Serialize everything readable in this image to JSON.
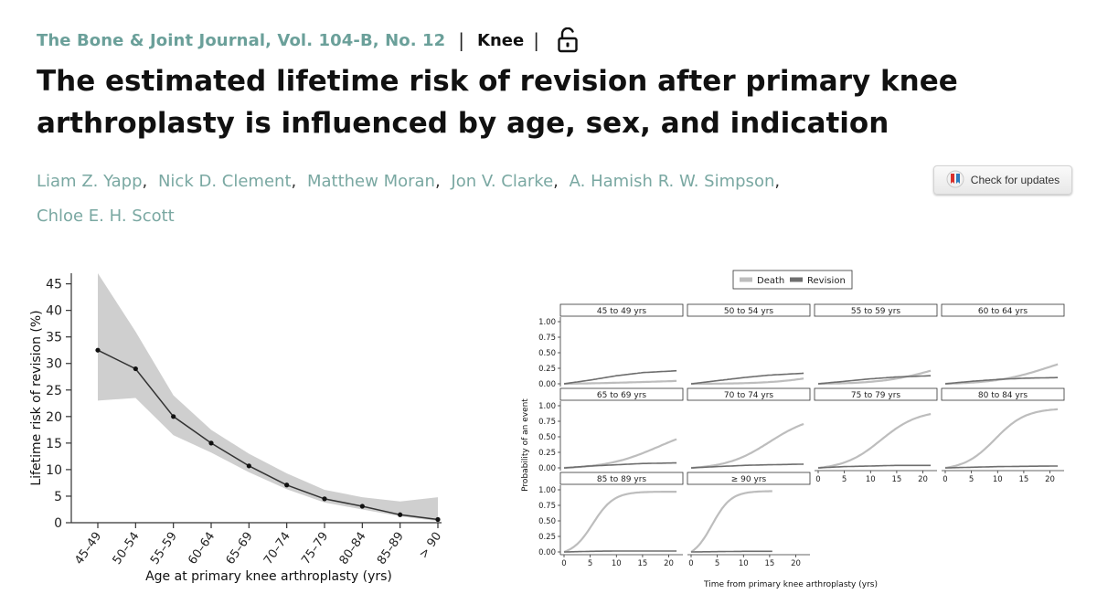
{
  "header": {
    "journal": "The Bone & Joint Journal, Vol. 104-B, No. 12",
    "separator": "|",
    "section": "Knee",
    "access_icon": "open-lock-icon"
  },
  "article": {
    "title": "The estimated lifetime risk of revision after primary knee arthroplasty is influenced by age, sex, and indication",
    "authors": [
      "Liam Z. Yapp",
      "Nick D. Clement",
      "Matthew Moran",
      "Jon V. Clarke",
      "A. Hamish R. W. Simpson",
      "Chloe E. H. Scott"
    ]
  },
  "check_updates": {
    "label": "Check for updates",
    "icon": "crossmark-icon"
  },
  "chart_data": [
    {
      "type": "line",
      "title": "",
      "xlabel": "Age at primary knee arthroplasty (yrs)",
      "ylabel": "Lifetime risk of revision (%)",
      "categories": [
        "45–49",
        "50–54",
        "55–59",
        "60–64",
        "65–69",
        "70–74",
        "75–79",
        "80–84",
        "85–89",
        "> 90"
      ],
      "values": [
        32.5,
        29,
        20,
        15,
        10.7,
        7.1,
        4.5,
        3.1,
        1.5,
        0.6
      ],
      "ci_upper": [
        47,
        36,
        24,
        17.5,
        13,
        9.3,
        6.2,
        4.8,
        4,
        4.8
      ],
      "ci_lower": [
        23,
        23.5,
        16.5,
        13.2,
        9.5,
        6.3,
        3.8,
        2.5,
        1.2,
        0.3
      ],
      "ylim": [
        0,
        47
      ],
      "yticks": [
        0,
        5,
        10,
        15,
        20,
        25,
        30,
        35,
        40,
        45
      ],
      "colors": {
        "band": "#cfcfcf",
        "line": "#333333",
        "point": "#111111"
      }
    },
    {
      "type": "line",
      "title": "",
      "xlabel": "Time from primary knee arthroplasty (yrs)",
      "ylabel": "Probability of an event",
      "legend": {
        "position": "top",
        "entries": [
          {
            "name": "Death",
            "color": "#bdbdbd"
          },
          {
            "name": "Revision",
            "color": "#6e6e6e"
          }
        ]
      },
      "ylim": [
        0,
        1
      ],
      "yticks": [
        "0.00",
        "0.25",
        "0.50",
        "0.75",
        "1.00"
      ],
      "xlim": [
        0,
        22
      ],
      "xticks": [
        "0",
        "5",
        "10",
        "15",
        "20"
      ],
      "panels": [
        {
          "label": "45 to 49 yrs",
          "tmax": 21.5,
          "death_final": 0.2,
          "death_mid": 34,
          "death_k": 0.06,
          "revision": [
            [
              0,
              0
            ],
            [
              5,
              0.06
            ],
            [
              10,
              0.13
            ],
            [
              15,
              0.18
            ],
            [
              21.5,
              0.21
            ]
          ]
        },
        {
          "label": "50 to 54 yrs",
          "tmax": 21.5,
          "death_final": 0.3,
          "death_mid": 26,
          "death_k": 0.2,
          "revision": [
            [
              0,
              0
            ],
            [
              5,
              0.05
            ],
            [
              10,
              0.1
            ],
            [
              15,
              0.14
            ],
            [
              21.5,
              0.17
            ]
          ]
        },
        {
          "label": "55 to 59 yrs",
          "tmax": 21.5,
          "death_final": 0.45,
          "death_mid": 22,
          "death_k": 0.2,
          "revision": [
            [
              0,
              0
            ],
            [
              5,
              0.04
            ],
            [
              10,
              0.08
            ],
            [
              15,
              0.11
            ],
            [
              21.5,
              0.13
            ]
          ]
        },
        {
          "label": "60 to 64 yrs",
          "tmax": 21.5,
          "death_final": 0.56,
          "death_mid": 20,
          "death_k": 0.19,
          "revision": [
            [
              0,
              0
            ],
            [
              5,
              0.04
            ],
            [
              10,
              0.07
            ],
            [
              15,
              0.09
            ],
            [
              21.5,
              0.1
            ]
          ]
        },
        {
          "label": "65 to 69 yrs",
          "tmax": 21.5,
          "death_final": 0.7,
          "death_mid": 18,
          "death_k": 0.2,
          "revision": [
            [
              0,
              0
            ],
            [
              5,
              0.03
            ],
            [
              10,
              0.05
            ],
            [
              15,
              0.07
            ],
            [
              21.5,
              0.08
            ]
          ]
        },
        {
          "label": "70 to 74 yrs",
          "tmax": 21.5,
          "death_final": 0.86,
          "death_mid": 15,
          "death_k": 0.24,
          "revision": [
            [
              0,
              0
            ],
            [
              5,
              0.02
            ],
            [
              10,
              0.04
            ],
            [
              15,
              0.05
            ],
            [
              21.5,
              0.06
            ]
          ]
        },
        {
          "label": "75 to 79 yrs",
          "tmax": 21.5,
          "death_final": 0.93,
          "death_mid": 12,
          "death_k": 0.28,
          "revision": [
            [
              0,
              0
            ],
            [
              5,
              0.02
            ],
            [
              10,
              0.03
            ],
            [
              15,
              0.04
            ],
            [
              21.5,
              0.04
            ]
          ]
        },
        {
          "label": "80 to 84 yrs",
          "tmax": 21.5,
          "death_final": 0.96,
          "death_mid": 9.5,
          "death_k": 0.34,
          "revision": [
            [
              0,
              0
            ],
            [
              5,
              0.01
            ],
            [
              10,
              0.02
            ],
            [
              15,
              0.025
            ],
            [
              21.5,
              0.03
            ]
          ]
        },
        {
          "label": "85 to 89 yrs",
          "tmax": 21.5,
          "death_final": 0.97,
          "death_mid": 5.5,
          "death_k": 0.5,
          "revision": [
            [
              0,
              0
            ],
            [
              5,
              0.01
            ],
            [
              10,
              0.015
            ],
            [
              15,
              0.015
            ],
            [
              21.5,
              0.015
            ]
          ]
        },
        {
          "label": "≥ 90 yrs",
          "tmax": 15.5,
          "death_final": 0.98,
          "death_mid": 4,
          "death_k": 0.55,
          "revision": [
            [
              0,
              0
            ],
            [
              5,
              0.005
            ],
            [
              10,
              0.01
            ],
            [
              15.5,
              0.01
            ]
          ]
        }
      ]
    }
  ]
}
